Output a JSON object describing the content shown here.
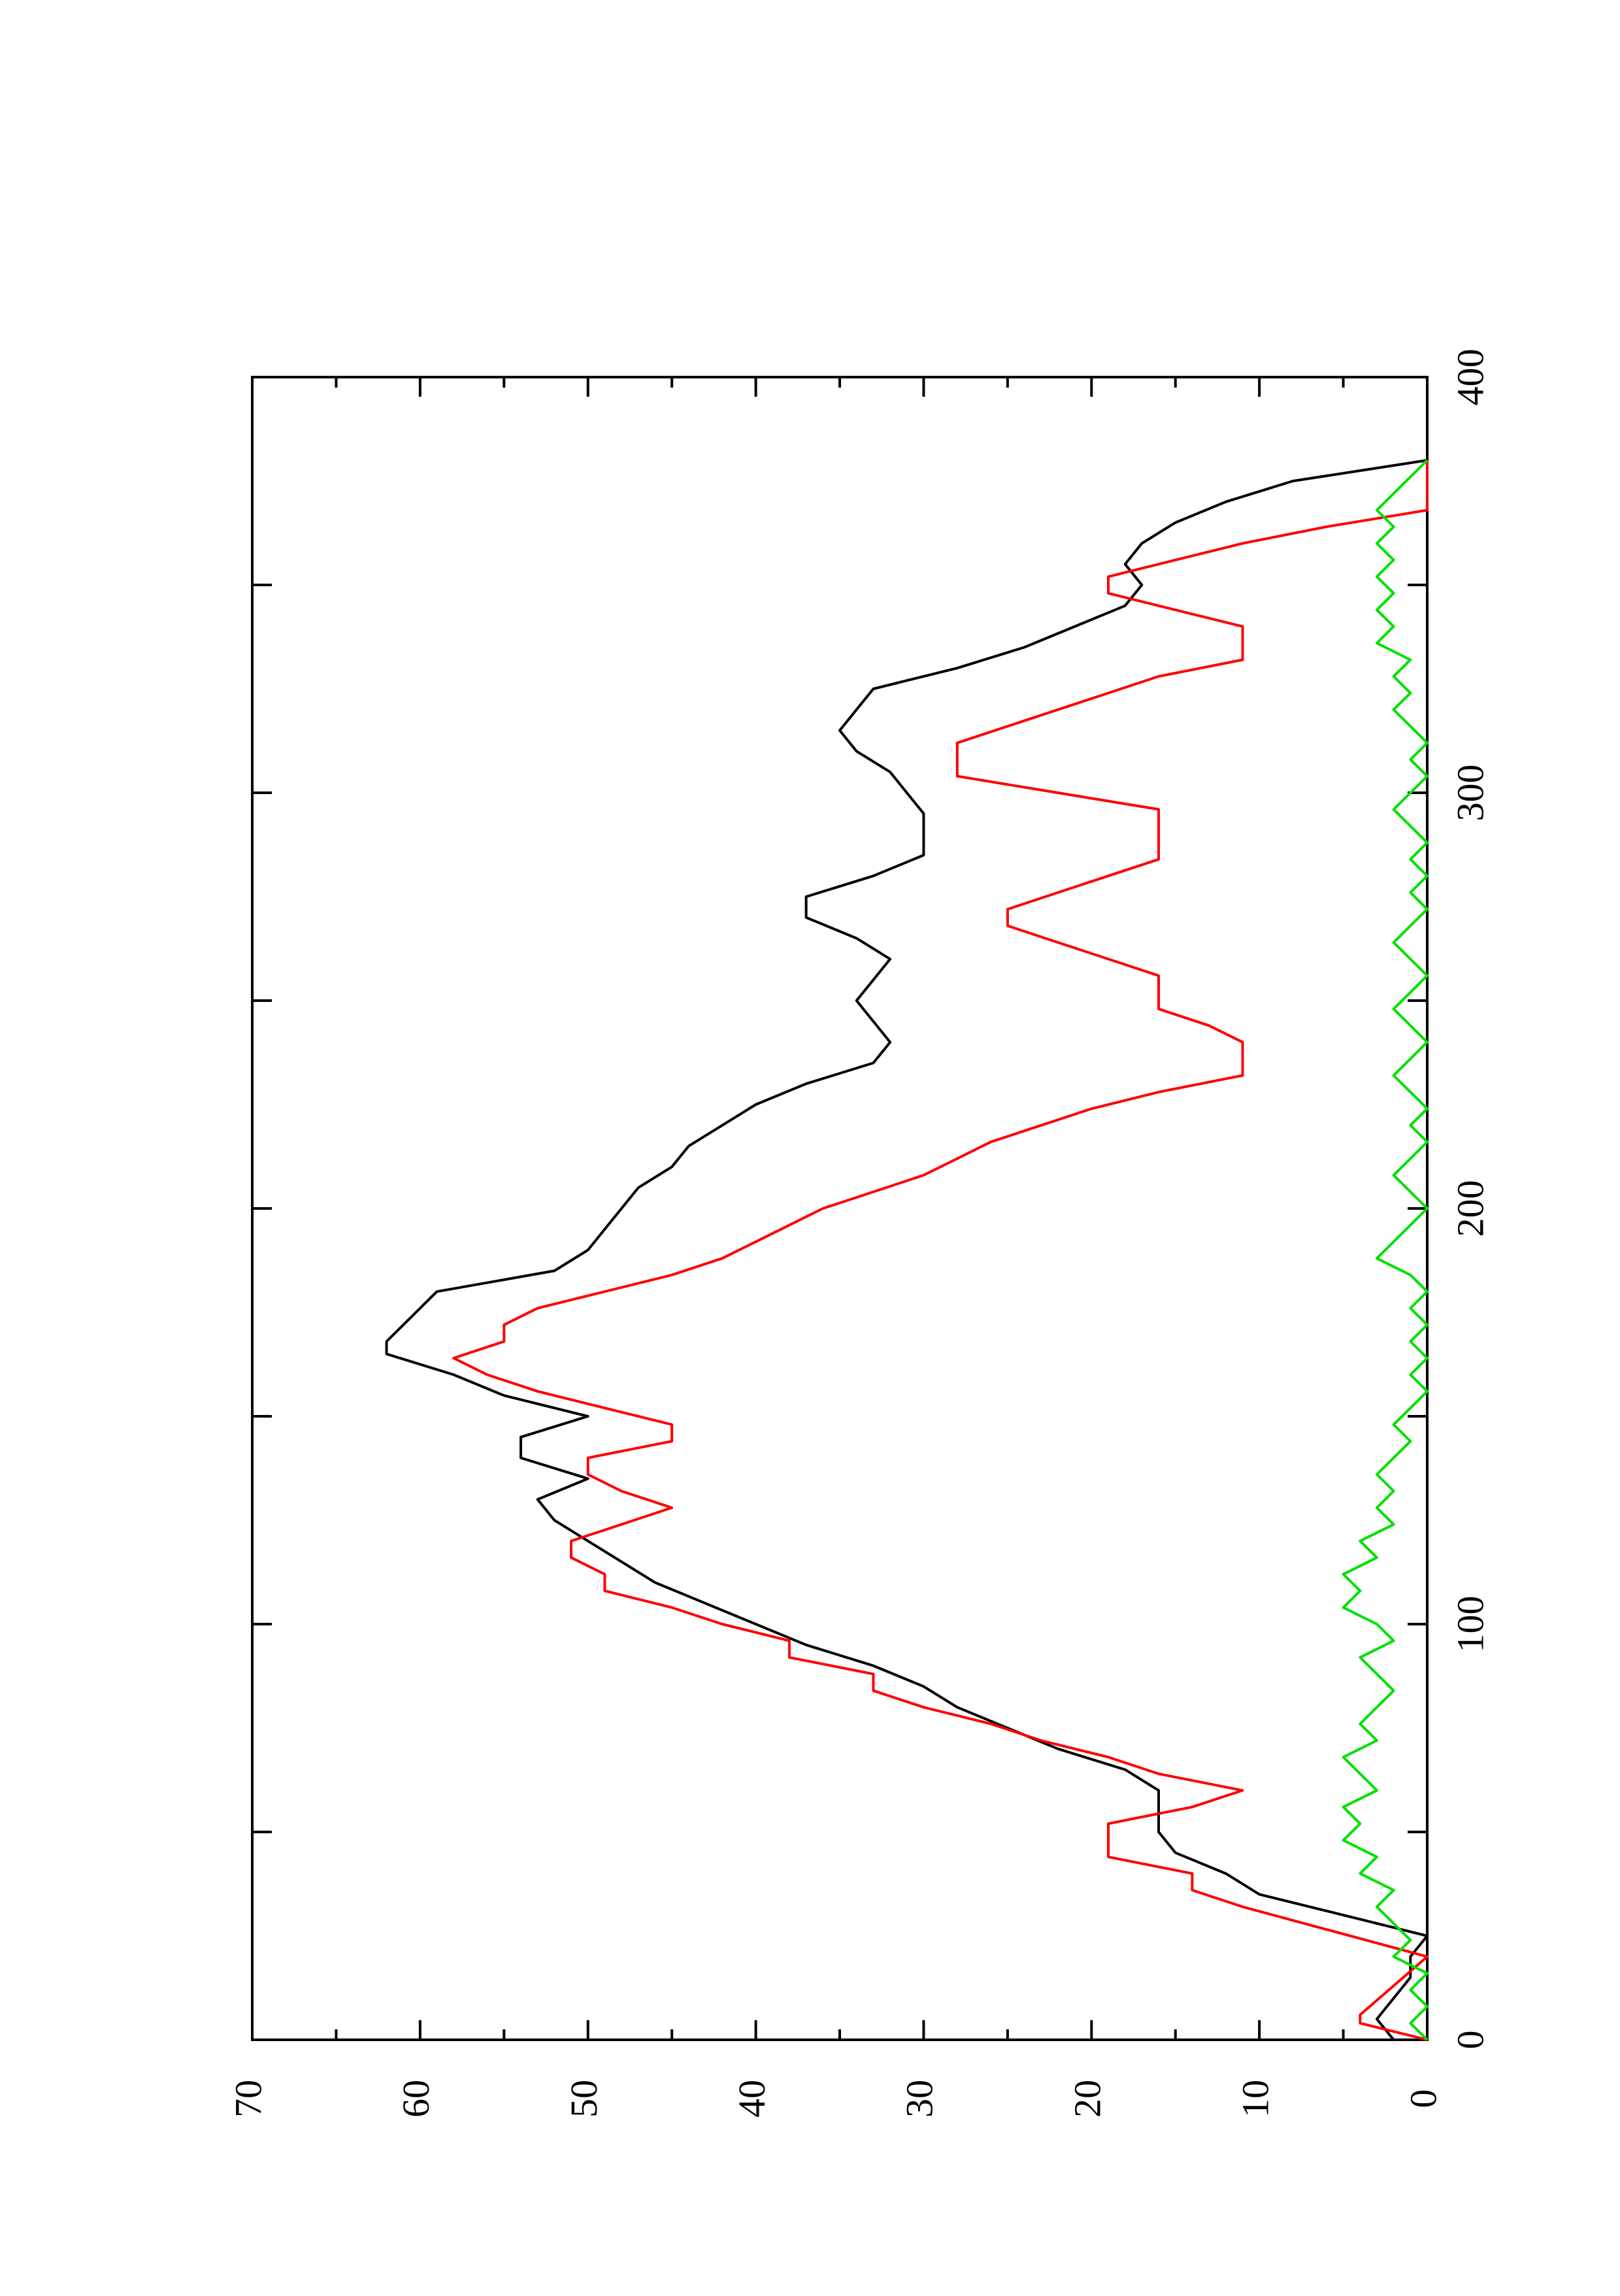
{
  "chart_data": {
    "type": "line",
    "orientation": "rotated 90 degrees counter-clockwise (x axis runs bottom-to-top along the right edge, y axis runs right-to-left along the bottom edge)",
    "title": "",
    "xlabel": "",
    "ylabel": "",
    "xlim": [
      0,
      400
    ],
    "ylim": [
      0,
      70
    ],
    "x_ticks": [
      "0",
      "100",
      "200",
      "300",
      "400"
    ],
    "y_ticks": [
      "0",
      "10",
      "20",
      "30",
      "40",
      "50",
      "60",
      "70"
    ],
    "grid": false,
    "legend": "none",
    "series": [
      {
        "color": "#000000",
        "x": [
          0,
          5,
          10,
          15,
          20,
          25,
          30,
          35,
          40,
          45,
          50,
          55,
          60,
          65,
          70,
          75,
          80,
          85,
          90,
          95,
          100,
          105,
          110,
          115,
          120,
          125,
          130,
          135,
          140,
          145,
          150,
          155,
          160,
          165,
          168,
          172,
          176,
          180,
          185,
          190,
          195,
          200,
          205,
          210,
          215,
          220,
          225,
          230,
          235,
          240,
          245,
          250,
          255,
          260,
          265,
          270,
          275,
          280,
          285,
          290,
          295,
          300,
          305,
          310,
          315,
          320,
          325,
          330,
          335,
          340,
          345,
          350,
          355,
          360,
          365,
          370,
          375,
          380
        ],
        "y": [
          2,
          3,
          2,
          1,
          1,
          0,
          5,
          10,
          12,
          15,
          16,
          16,
          16,
          18,
          22,
          25,
          28,
          30,
          33,
          37,
          40,
          43,
          46,
          48,
          50,
          52,
          53,
          50,
          54,
          54,
          50,
          55,
          58,
          62,
          62,
          61,
          60,
          59,
          52,
          50,
          49,
          48,
          47,
          45,
          44,
          42,
          40,
          37,
          33,
          32,
          33,
          34,
          33,
          32,
          34,
          37,
          37,
          33,
          30,
          30,
          30,
          31,
          32,
          34,
          35,
          34,
          33,
          28,
          24,
          21,
          18,
          17,
          18,
          17,
          15,
          12,
          8,
          0
        ]
      },
      {
        "color": "#ff0000",
        "x": [
          0,
          4,
          6,
          20,
          32,
          36,
          40,
          44,
          48,
          52,
          56,
          60,
          64,
          68,
          72,
          76,
          80,
          84,
          88,
          92,
          96,
          100,
          104,
          108,
          112,
          116,
          120,
          124,
          128,
          132,
          136,
          140,
          144,
          148,
          152,
          156,
          160,
          164,
          168,
          172,
          176,
          180,
          184,
          188,
          192,
          196,
          200,
          204,
          208,
          212,
          216,
          220,
          224,
          228,
          232,
          236,
          240,
          244,
          248,
          252,
          256,
          260,
          264,
          268,
          272,
          276,
          280,
          284,
          288,
          292,
          296,
          300,
          304,
          308,
          312,
          316,
          320,
          324,
          328,
          332,
          336,
          340,
          344,
          348,
          352,
          356,
          360,
          364,
          368,
          372,
          376,
          380
        ],
        "y": [
          0,
          4,
          4,
          0,
          11,
          14,
          14,
          19,
          19,
          19,
          14,
          11,
          16,
          19,
          23,
          26,
          30,
          33,
          33,
          38,
          38,
          42,
          45,
          49,
          49,
          51,
          51,
          48,
          45,
          48,
          50,
          50,
          45,
          45,
          49,
          53,
          56,
          58,
          55,
          55,
          53,
          49,
          45,
          42,
          40,
          38,
          36,
          33,
          30,
          28,
          26,
          23,
          20,
          16,
          11,
          11,
          11,
          13,
          16,
          16,
          16,
          19,
          22,
          25,
          25,
          22,
          19,
          16,
          16,
          16,
          16,
          22,
          28,
          28,
          28,
          25,
          22,
          19,
          16,
          11,
          11,
          11,
          15,
          19,
          19,
          15,
          11,
          6,
          0,
          0,
          0,
          0
        ]
      },
      {
        "color": "#00e000",
        "x": [
          0,
          4,
          8,
          12,
          16,
          20,
          24,
          28,
          32,
          36,
          40,
          44,
          48,
          52,
          56,
          60,
          64,
          68,
          72,
          76,
          80,
          84,
          88,
          92,
          96,
          100,
          104,
          108,
          112,
          116,
          120,
          124,
          128,
          132,
          136,
          140,
          144,
          148,
          152,
          156,
          160,
          164,
          168,
          172,
          176,
          180,
          184,
          188,
          192,
          196,
          200,
          204,
          208,
          212,
          216,
          220,
          224,
          228,
          232,
          236,
          240,
          244,
          248,
          252,
          256,
          260,
          264,
          268,
          272,
          276,
          280,
          284,
          288,
          292,
          296,
          300,
          304,
          308,
          312,
          316,
          320,
          324,
          328,
          332,
          336,
          340,
          344,
          348,
          352,
          356,
          360,
          364,
          368,
          372,
          376,
          380
        ],
        "y": [
          0,
          1,
          0,
          1,
          0,
          2,
          1,
          2,
          3,
          2,
          4,
          3,
          5,
          4,
          5,
          3,
          4,
          5,
          3,
          4,
          3,
          2,
          3,
          4,
          2,
          3,
          5,
          4,
          5,
          3,
          4,
          2,
          3,
          2,
          3,
          2,
          1,
          2,
          1,
          0,
          1,
          0,
          1,
          0,
          1,
          0,
          1,
          3,
          2,
          1,
          0,
          1,
          2,
          1,
          0,
          1,
          0,
          1,
          2,
          1,
          0,
          1,
          2,
          1,
          0,
          1,
          2,
          1,
          0,
          1,
          0,
          1,
          0,
          1,
          2,
          1,
          0,
          1,
          0,
          1,
          2,
          1,
          2,
          1,
          3,
          2,
          3,
          2,
          3,
          2,
          3,
          2,
          3,
          2,
          1,
          0
        ]
      }
    ]
  }
}
